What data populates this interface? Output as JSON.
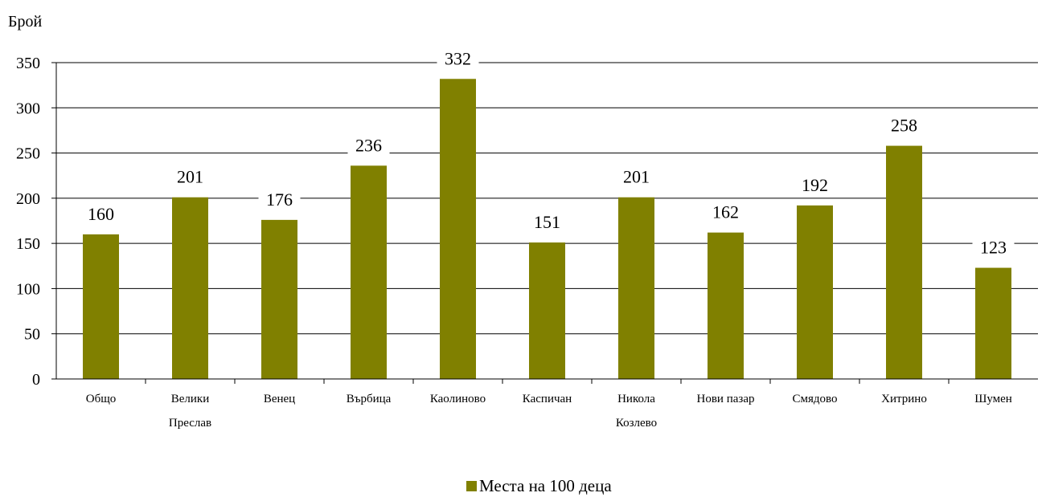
{
  "chart_data": {
    "type": "bar",
    "ylabel": "Брой",
    "xlabel": "",
    "ylim": [
      0,
      350
    ],
    "yticks": [
      0,
      50,
      100,
      150,
      200,
      250,
      300,
      350
    ],
    "grid": true,
    "legend_position": "bottom-center",
    "categories": [
      [
        "Общо"
      ],
      [
        "Велики",
        "Преслав"
      ],
      [
        "Венец"
      ],
      [
        "Върбица"
      ],
      [
        "Каолиново"
      ],
      [
        "Каспичан"
      ],
      [
        "Никола",
        "Козлево"
      ],
      [
        "Нови пазар"
      ],
      [
        "Смядово"
      ],
      [
        "Хитрино"
      ],
      [
        "Шумен"
      ]
    ],
    "series": [
      {
        "name": "Места на 100 деца",
        "color": "#808000",
        "values": [
          160,
          201,
          176,
          236,
          332,
          151,
          201,
          162,
          192,
          258,
          123
        ]
      }
    ]
  }
}
